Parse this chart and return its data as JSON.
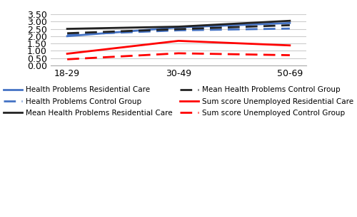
{
  "x_labels": [
    "18-29",
    "30-49",
    "50-69"
  ],
  "x_positions": [
    0,
    1,
    2
  ],
  "series": [
    {
      "label": "Health Problems Residential Care",
      "values": [
        2.0,
        2.6,
        2.9
      ],
      "color": "#4472C4",
      "linestyle": "solid",
      "linewidth": 2.0
    },
    {
      "label": "Health Problems Control Group",
      "values": [
        2.1,
        2.4,
        2.52
      ],
      "color": "#4472C4",
      "linestyle": "dashed",
      "linewidth": 2.0
    },
    {
      "label": "Mean Health Problems Residential Care",
      "values": [
        2.5,
        2.65,
        3.05
      ],
      "color": "#222222",
      "linestyle": "solid",
      "linewidth": 2.0
    },
    {
      "label": "Mean Health Problems Control Group",
      "values": [
        2.2,
        2.48,
        2.75
      ],
      "color": "#222222",
      "linestyle": "dashed",
      "linewidth": 2.0
    },
    {
      "label": "Sum score Unemployed Residential Care",
      "values": [
        0.8,
        1.68,
        1.37
      ],
      "color": "#FF0000",
      "linestyle": "solid",
      "linewidth": 2.0
    },
    {
      "label": "Sum score Unemployed Control Group",
      "values": [
        0.42,
        0.83,
        0.7
      ],
      "color": "#FF0000",
      "linestyle": "dashed",
      "linewidth": 2.0
    }
  ],
  "ylim": [
    0.0,
    3.5
  ],
  "yticks": [
    0.0,
    0.5,
    1.0,
    1.5,
    2.0,
    2.5,
    3.0,
    3.5
  ],
  "ytick_labels": [
    "0.00",
    "0.50",
    "1.00",
    "1.50",
    "2.00",
    "2.50",
    "3.00",
    "3.50"
  ],
  "grid_color": "#cccccc",
  "background_color": "#ffffff",
  "legend_fontsize": 7.5,
  "tick_fontsize": 9,
  "dash_pattern": [
    6,
    3
  ]
}
